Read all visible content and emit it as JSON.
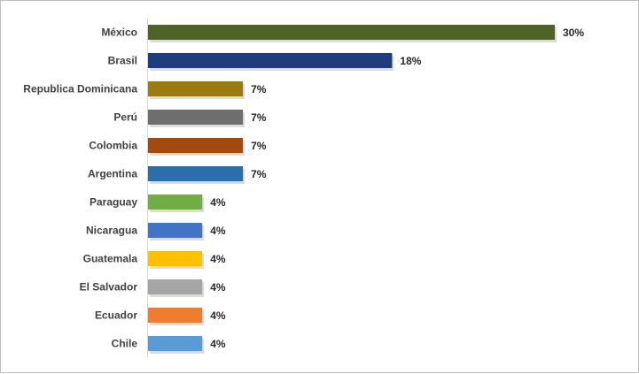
{
  "chart_data": {
    "type": "bar",
    "orientation": "horizontal",
    "title": "",
    "xlabel": "",
    "ylabel": "",
    "grid": false,
    "legend": "none",
    "xlim": [
      0,
      30
    ],
    "categories": [
      "México",
      "Brasil",
      "Republica Dominicana",
      "Perú",
      "Colombia",
      "Argentina",
      "Paraguay",
      "Nicaragua",
      "Guatemala",
      "El Salvador",
      "Ecuador",
      "Chile"
    ],
    "values": [
      30,
      18,
      7,
      7,
      7,
      7,
      4,
      4,
      4,
      4,
      4,
      4
    ],
    "value_labels": [
      "30%",
      "18%",
      "7%",
      "7%",
      "7%",
      "7%",
      "4%",
      "4%",
      "4%",
      "4%",
      "4%",
      "4%"
    ],
    "colors": [
      "#4f6228",
      "#1f3d7a",
      "#9c7a12",
      "#6e6e6e",
      "#a34a0f",
      "#2e6ea8",
      "#70ad47",
      "#4472c4",
      "#ffc000",
      "#a5a5a5",
      "#ed7d31",
      "#5b9bd5"
    ]
  }
}
